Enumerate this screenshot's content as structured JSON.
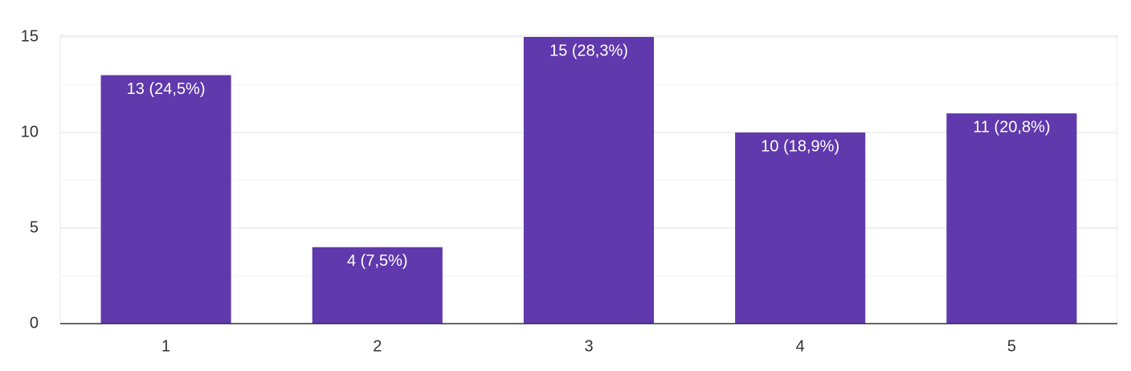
{
  "chart_data": {
    "type": "bar",
    "categories": [
      "1",
      "2",
      "3",
      "4",
      "5"
    ],
    "values": [
      13,
      4,
      15,
      10,
      11
    ],
    "value_labels": [
      "13 (24,5%)",
      "4 (7,5%)",
      "15 (28,3%)",
      "10 (18,9%)",
      "11 (20,8%)"
    ],
    "color": "#6039ad",
    "ylim": [
      0,
      15
    ],
    "yticks": [
      0,
      5,
      10,
      15
    ],
    "minor_yticks": [
      2.5,
      7.5,
      12.5
    ],
    "grid": true
  }
}
